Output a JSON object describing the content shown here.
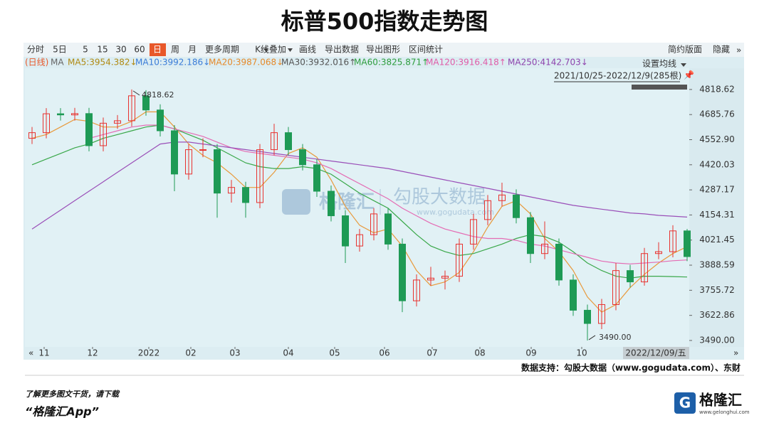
{
  "chart_data": {
    "type": "candlestick",
    "title": "标普500指数走势图",
    "ylim": [
      3456,
      4931
    ],
    "yticks": [
      4818.62,
      4685.76,
      {
        "value": 4552.9,
        "label": "4552.90"
      },
      4420.03,
      4287.17,
      4154.31,
      4021.45,
      3888.59,
      3755.72,
      3622.86,
      {
        "value": 3490,
        "label": "3490.00"
      }
    ],
    "xlim": [
      -0.5,
      46.15
    ],
    "xticks": [
      {
        "value": 0.85,
        "label": "11"
      },
      {
        "value": 4.25,
        "label": "12"
      },
      {
        "value": 8.2,
        "label": "2022"
      },
      {
        "value": 11.15,
        "label": "02"
      },
      {
        "value": 14.25,
        "label": "03"
      },
      {
        "value": 18,
        "label": "04"
      },
      {
        "value": 21.25,
        "label": "05"
      },
      {
        "value": 24.75,
        "label": "06"
      },
      {
        "value": 28.1,
        "label": "07"
      },
      {
        "value": 31.45,
        "label": "08"
      },
      {
        "value": 35.05,
        "label": "09"
      },
      {
        "value": 38.6,
        "label": "10"
      }
    ],
    "up_color": "#e8322f",
    "down_color": "#1e9a55",
    "open": [
      4560,
      4590,
      4690,
      4684,
      4691,
      4521,
      4640,
      4653,
      4785,
      4710,
      4600,
      4371,
      4500,
      4500,
      4270,
      4300,
      4220,
      4500,
      4590,
      4500,
      4420,
      4280,
      4150,
      3990,
      4050,
      4160,
      4000,
      3700,
      3810,
      3820,
      3830,
      4000,
      4130,
      4230,
      4260,
      4140,
      3950,
      4000,
      3810,
      3650,
      3580,
      3680,
      3860,
      3800,
      3950,
      3960,
      4070
    ],
    "high": [
      4620,
      4720,
      4720,
      4721,
      4721,
      4670,
      4683,
      4818.62,
      4815,
      4740,
      4630,
      4530,
      4560,
      4530,
      4340,
      4330,
      4530,
      4637,
      4620,
      4530,
      4450,
      4310,
      4180,
      4080,
      4190,
      4190,
      4030,
      3840,
      3880,
      3860,
      4030,
      4160,
      4260,
      4325,
      4290,
      4170,
      4120,
      4030,
      3840,
      3680,
      3710,
      3900,
      3890,
      3980,
      4010,
      4100,
      4080
    ],
    "low": [
      4530,
      4560,
      4654,
      4654,
      4491,
      4491,
      4610,
      4623,
      4680,
      4570,
      4280,
      4341,
      4460,
      4140,
      4220,
      4140,
      4190,
      4470,
      4470,
      4390,
      4250,
      4120,
      3900,
      3960,
      4020,
      3970,
      3640,
      3670,
      3780,
      3760,
      3800,
      3970,
      4100,
      4200,
      4110,
      3900,
      3920,
      3780,
      3620,
      3490,
      3550,
      3650,
      3770,
      3780,
      3920,
      3930,
      3910
    ],
    "close": [
      4590,
      4690,
      4684,
      4691,
      4521,
      4640,
      4653,
      4785,
      4710,
      4600,
      4371,
      4500,
      4500,
      4270,
      4300,
      4220,
      4500,
      4590,
      4500,
      4420,
      4280,
      4150,
      3990,
      4050,
      4160,
      4000,
      3700,
      3810,
      3820,
      3830,
      4000,
      4130,
      4230,
      4260,
      4140,
      3950,
      4000,
      3810,
      3650,
      3580,
      3680,
      3860,
      3800,
      3950,
      3960,
      4070,
      3934
    ],
    "high_label": "4818.62",
    "low_label": "3490.00",
    "series": [
      {
        "color": "#e89a3c",
        "values": [
          4560,
          4580,
          4620,
          4660,
          4650,
          4620,
          4620,
          4650,
          4700,
          4700,
          4620,
          4530,
          4470,
          4430,
          4370,
          4300,
          4300,
          4380,
          4480,
          4510,
          4460,
          4340,
          4200,
          4100,
          4060,
          4080,
          3990,
          3860,
          3780,
          3800,
          3850,
          3960,
          4090,
          4200,
          4230,
          4160,
          4030,
          3960,
          3860,
          3720,
          3640,
          3680,
          3770,
          3840,
          3900,
          3950,
          3987
        ]
      },
      {
        "color": "#3aa84a",
        "values": [
          4420,
          4450,
          4480,
          4510,
          4530,
          4560,
          4580,
          4600,
          4620,
          4630,
          4610,
          4580,
          4550,
          4510,
          4470,
          4430,
          4410,
          4400,
          4400,
          4410,
          4400,
          4370,
          4320,
          4270,
          4230,
          4190,
          4120,
          4050,
          3990,
          3960,
          3940,
          3950,
          3975,
          4000,
          4030,
          4050,
          4040,
          4010,
          3960,
          3900,
          3860,
          3830,
          3820,
          3830,
          3830,
          3828,
          3826
        ]
      },
      {
        "color": "#e46cb4",
        "values": [
          null,
          null,
          null,
          null,
          4560,
          4580,
          4600,
          4620,
          4630,
          4630,
          4610,
          4590,
          4570,
          4540,
          4510,
          4490,
          4480,
          4470,
          4460,
          4450,
          4430,
          4400,
          4360,
          4320,
          4280,
          4240,
          4190,
          4150,
          4110,
          4080,
          4060,
          4040,
          4030,
          4030,
          4020,
          4000,
          3990,
          3970,
          3950,
          3930,
          3910,
          3900,
          3895,
          3900,
          3905,
          3912,
          3916
        ]
      },
      {
        "color": "#9a4fb8",
        "values": [
          4080,
          4130,
          4180,
          4230,
          4280,
          4330,
          4380,
          4430,
          4480,
          4530,
          4540,
          4540,
          4530,
          4520,
          4510,
          4500,
          4490,
          4480,
          4470,
          4460,
          4450,
          4440,
          4430,
          4420,
          4410,
          4400,
          4385,
          4370,
          4355,
          4340,
          4325,
          4310,
          4295,
          4280,
          4265,
          4250,
          4235,
          4220,
          4205,
          4195,
          4185,
          4175,
          4165,
          4160,
          4152,
          4148,
          4143
        ]
      }
    ],
    "ma_legend": [
      {
        "label": "MA5:3954.382↓",
        "color": "#b08a12"
      },
      {
        "label": "MA10:3992.186↓",
        "color": "#3b7dd8"
      },
      {
        "label": "MA20:3987.068↓",
        "color": "#e58a2b"
      },
      {
        "label": "MA30:3932.016↑",
        "color": "#555555"
      },
      {
        "label": "MA60:3825.871↑",
        "color": "#2e9e3e"
      },
      {
        "label": "MA120:3916.418↑",
        "color": "#e05ca8"
      },
      {
        "label": "MA250:4142.703↓",
        "color": "#8e44ad"
      }
    ]
  },
  "ui": {
    "toolbar_left": [
      "分时",
      "5日",
      "5",
      "15",
      "30",
      "60",
      "日",
      "周",
      "月",
      "更多周期",
      "K线叠加",
      "画线",
      "导出数据",
      "导出图形",
      "区间统计"
    ],
    "toolbar_right": [
      "简约版面",
      "隐藏"
    ],
    "period": "(日线)",
    "ma": "MA",
    "ma_setting": "设置均线",
    "range": "2021/10/25-2022/12/9(285根)",
    "cursor_date": "2022/12/09/五",
    "watermark": {
      "brand": "格隆汇",
      "data": "勾股大数据",
      "url": "www.gogudata.com"
    },
    "source": "数据支持：勾股大数据（www.gogudata.com）、东财",
    "promo": "了解更多图文干货，请下载",
    "app": "“格隆汇App”",
    "logo": "格隆汇",
    "logo_url": "www.gelonghui.com"
  }
}
